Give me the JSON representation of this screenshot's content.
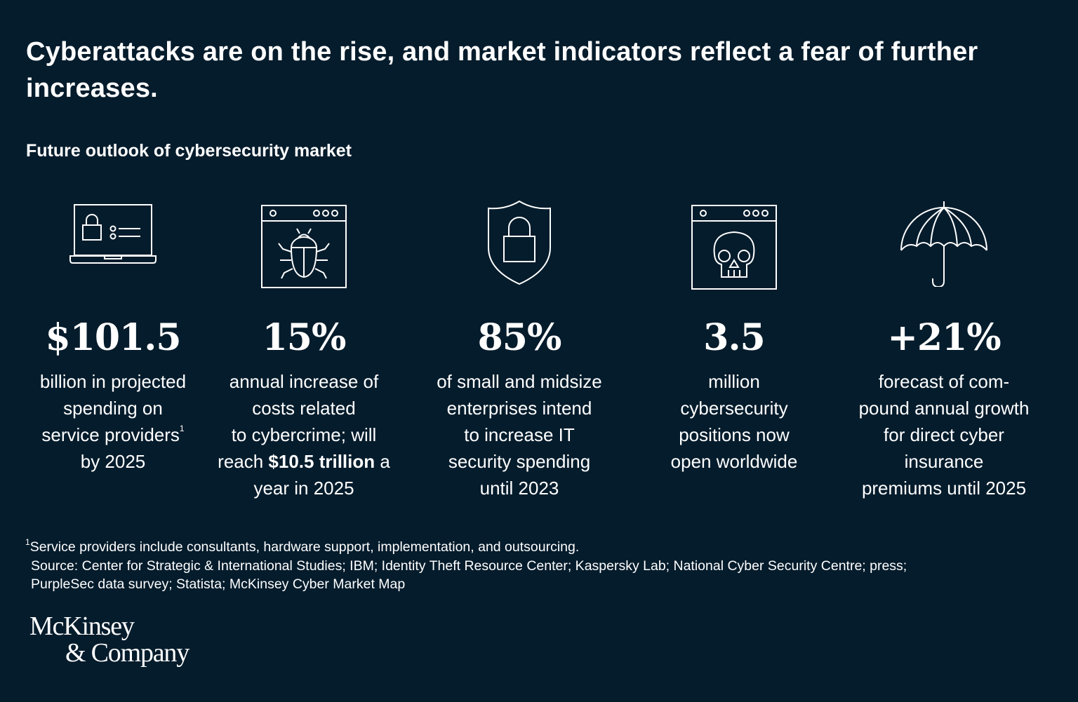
{
  "title": "Cyberattacks are on the rise, and market indicators reflect a fear of further increases.",
  "subtitle": "Future outlook of cybersecurity market",
  "stats": [
    {
      "icon": "laptop-lock-icon",
      "value": "$101.5",
      "desc_lines": [
        "billion in projected",
        "spending on",
        "service providers",
        "by 2025"
      ],
      "footnote_mark": "1"
    },
    {
      "icon": "browser-bug-icon",
      "value": "15%",
      "desc_lines": [
        "annual increase of",
        "costs related",
        "to cybercrime; will"
      ],
      "desc_pre": "reach ",
      "desc_bold": "$10.5 trillion",
      "desc_post": " a",
      "desc_last": "year in 2025"
    },
    {
      "icon": "shield-lock-icon",
      "value": "85%",
      "desc_lines": [
        "of small and midsize",
        "enterprises intend",
        "to increase IT",
        "security spending",
        "until 2023"
      ]
    },
    {
      "icon": "browser-skull-icon",
      "value": "3.5",
      "desc_lines": [
        "million",
        "cybersecurity",
        "positions now",
        "open worldwide"
      ]
    },
    {
      "icon": "umbrella-icon",
      "value": "+21%",
      "desc_lines": [
        "forecast of com-",
        "pound annual growth",
        "for direct cyber",
        "insurance",
        "premiums until 2025"
      ]
    }
  ],
  "footnote": {
    "mark": "1",
    "text": "Service providers include consultants, hardware support, implementation, and outsourcing.",
    "source_line1": "Source: Center for Strategic & International Studies; IBM; Identity Theft Resource Center; Kaspersky Lab; National Cyber Security Centre; press;",
    "source_line2": "PurpleSec data survey; Statista; McKinsey Cyber Market Map"
  },
  "logo": {
    "line1": "McKinsey",
    "line2": "& Company"
  }
}
